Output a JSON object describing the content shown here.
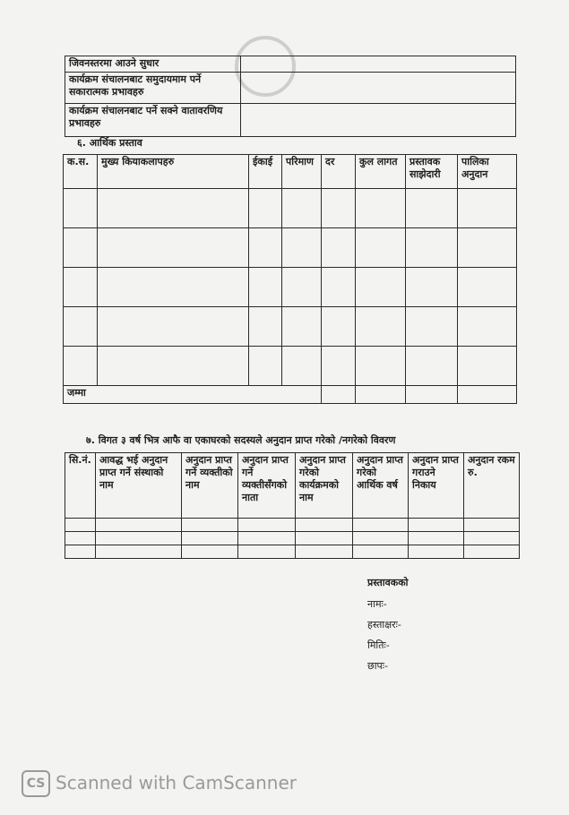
{
  "impact_table": {
    "rows": [
      {
        "label": "जिवनस्तरमा आउने सुधार",
        "value": ""
      },
      {
        "label": "कार्यक्रम संचालनबाट समुदायमाम पर्ने सकारात्मक प्रभावहरु",
        "value": ""
      },
      {
        "label": "कार्यक्रम संचालनबाट पर्ने सक्ने वातावरणिय प्रभावहरु",
        "value": ""
      }
    ]
  },
  "section6": {
    "heading": "६. आर्थिक प्रस्ताव",
    "columns": [
      "क.स.",
      "मुख्य कियाकलापहरु",
      "ईकाई",
      "परिमाण",
      "दर",
      "कुल लागत",
      "प्रस्तावक साझेदारी",
      "पालिका अनुदान"
    ],
    "total_label": "जम्मा"
  },
  "section7": {
    "heading": "७. विगत ३ वर्ष भित्र आफै वा एकाघरको सदस्यले अनुदान प्राप्त गरेको /नगरेको विवरण",
    "columns": [
      "सि.नं.",
      "आवद्ध भई अनुदान प्राप्त गर्ने संस्थाको नाम",
      "अनुदान प्राप्त गर्ने व्यक्तीको नाम",
      "अनुदान प्राप्त गर्ने व्यक्तीसँगको नाता",
      "अनुदान प्राप्त गरेको कार्यक्रमको नाम",
      "अनुदान प्राप्त गरेको आर्थिक वर्ष",
      "अनुदान प्राप्त गराउने निकाय",
      "अनुदान रकम रु."
    ]
  },
  "signature": {
    "title": "प्रस्तावकको",
    "name": "नामः-",
    "signature": "हस्ताक्षरः-",
    "date": "मितिः-",
    "stamp": "छापः-"
  },
  "watermark": {
    "logo": "CS",
    "text": "Scanned with CamScanner"
  }
}
